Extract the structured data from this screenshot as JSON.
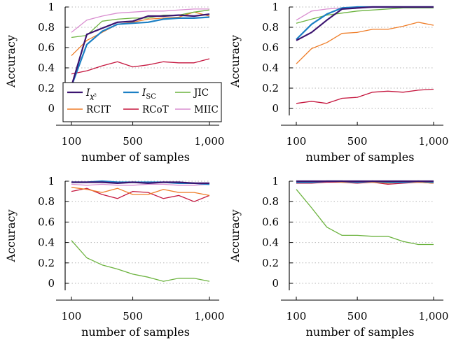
{
  "chart_data": [
    {
      "type": "line",
      "xlabel": "number of samples",
      "ylabel": "Accuracy",
      "ylim": [
        -0.05,
        1.0
      ],
      "xlim": [
        80,
        1000
      ],
      "xticks": [
        100,
        500,
        1000
      ],
      "xtick_labels": [
        "100",
        "500",
        "1,000"
      ],
      "yticks": [
        0,
        0.2,
        0.4,
        0.6,
        0.8,
        1
      ],
      "ytick_labels": [
        "0",
        "0.2",
        "0.4",
        "0.6",
        "0.8",
        "1"
      ],
      "grid": "horizontal dotted",
      "x": [
        100,
        200,
        300,
        400,
        500,
        600,
        700,
        800,
        900,
        1000
      ],
      "series": [
        {
          "key": "ichi",
          "name": "I𝜒²",
          "color": "#3b1470",
          "values": [
            0.22,
            0.73,
            0.79,
            0.85,
            0.86,
            0.91,
            0.91,
            0.92,
            0.91,
            0.93
          ]
        },
        {
          "key": "isc",
          "name": "ISC",
          "color": "#1b7fc4",
          "values": [
            0.22,
            0.63,
            0.76,
            0.83,
            0.84,
            0.85,
            0.88,
            0.89,
            0.89,
            0.9
          ]
        },
        {
          "key": "jic",
          "name": "JIC",
          "color": "#6cb33f",
          "values": [
            0.7,
            0.72,
            0.86,
            0.88,
            0.89,
            0.89,
            0.92,
            0.92,
            0.95,
            0.97
          ]
        },
        {
          "key": "rcit",
          "name": "RCIT",
          "color": "#ef7d28",
          "values": [
            0.52,
            0.67,
            0.75,
            0.83,
            0.85,
            0.88,
            0.89,
            0.9,
            0.95,
            0.91
          ]
        },
        {
          "key": "rcot",
          "name": "RCoT",
          "color": "#c5163e",
          "values": [
            0.34,
            0.37,
            0.42,
            0.46,
            0.41,
            0.43,
            0.46,
            0.45,
            0.45,
            0.49
          ]
        },
        {
          "key": "miic",
          "name": "MIIC",
          "color": "#d98ed0",
          "values": [
            0.75,
            0.87,
            0.91,
            0.94,
            0.95,
            0.96,
            0.96,
            0.97,
            0.98,
            0.98
          ]
        }
      ]
    },
    {
      "type": "line",
      "xlabel": "number of samples",
      "ylabel": "Accuracy",
      "ylim": [
        -0.05,
        1.0
      ],
      "xlim": [
        80,
        1000
      ],
      "xticks": [
        100,
        500,
        1000
      ],
      "xtick_labels": [
        "100",
        "500",
        "1,000"
      ],
      "yticks": [
        0,
        0.2,
        0.4,
        0.6,
        0.8,
        1
      ],
      "ytick_labels": [
        "0",
        "0.2",
        "0.4",
        "0.6",
        "0.8",
        "1"
      ],
      "grid": "horizontal dotted",
      "x": [
        100,
        200,
        300,
        400,
        500,
        600,
        700,
        800,
        900,
        1000
      ],
      "series": [
        {
          "key": "ichi",
          "color": "#3b1470",
          "values": [
            0.67,
            0.75,
            0.87,
            0.98,
            0.99,
            1.0,
            1.0,
            1.0,
            1.0,
            1.0
          ]
        },
        {
          "key": "isc",
          "color": "#1b7fc4",
          "values": [
            0.68,
            0.83,
            0.93,
            0.99,
            1.0,
            1.0,
            1.0,
            1.0,
            1.0,
            1.0
          ]
        },
        {
          "key": "jic",
          "color": "#6cb33f",
          "values": [
            0.84,
            0.88,
            0.92,
            0.94,
            0.96,
            0.97,
            0.98,
            0.99,
            0.99,
            0.99
          ]
        },
        {
          "key": "rcit",
          "color": "#ef7d28",
          "values": [
            0.44,
            0.59,
            0.65,
            0.74,
            0.75,
            0.78,
            0.78,
            0.81,
            0.85,
            0.82
          ]
        },
        {
          "key": "rcot",
          "color": "#c5163e",
          "values": [
            0.05,
            0.07,
            0.05,
            0.1,
            0.11,
            0.16,
            0.17,
            0.16,
            0.18,
            0.19
          ]
        },
        {
          "key": "miic",
          "color": "#d98ed0",
          "values": [
            0.87,
            0.96,
            0.98,
            0.99,
            1.0,
            1.0,
            1.0,
            1.0,
            1.0,
            1.0
          ]
        }
      ]
    },
    {
      "type": "line",
      "xlabel": "number of samples",
      "ylabel": "Accuracy",
      "ylim": [
        -0.05,
        1.0
      ],
      "xlim": [
        80,
        1000
      ],
      "xticks": [
        100,
        500,
        1000
      ],
      "xtick_labels": [
        "100",
        "500",
        "1,000"
      ],
      "yticks": [
        0,
        0.2,
        0.4,
        0.6,
        0.8,
        1
      ],
      "ytick_labels": [
        "0",
        "0.2",
        "0.4",
        "0.6",
        "0.8",
        "1"
      ],
      "grid": "horizontal dotted",
      "x": [
        100,
        200,
        300,
        400,
        500,
        600,
        700,
        800,
        900,
        1000
      ],
      "series": [
        {
          "key": "ichi",
          "color": "#3b1470",
          "values": [
            0.99,
            0.99,
            0.99,
            0.98,
            0.99,
            0.98,
            0.99,
            0.99,
            0.98,
            0.98
          ]
        },
        {
          "key": "isc",
          "color": "#1b7fc4",
          "values": [
            0.99,
            0.99,
            1.0,
            0.99,
            0.99,
            0.99,
            0.99,
            0.98,
            0.98,
            0.97
          ]
        },
        {
          "key": "jic",
          "color": "#6cb33f",
          "values": [
            0.42,
            0.25,
            0.18,
            0.14,
            0.09,
            0.06,
            0.02,
            0.05,
            0.05,
            0.02
          ]
        },
        {
          "key": "rcit",
          "color": "#ef7d28",
          "values": [
            0.94,
            0.92,
            0.89,
            0.93,
            0.87,
            0.87,
            0.92,
            0.89,
            0.89,
            0.86
          ]
        },
        {
          "key": "rcot",
          "color": "#c5163e",
          "values": [
            0.9,
            0.93,
            0.87,
            0.83,
            0.9,
            0.89,
            0.83,
            0.86,
            0.8,
            0.86
          ]
        },
        {
          "key": "miic",
          "color": "#d98ed0",
          "values": [
            0.97,
            0.96,
            0.97,
            0.96,
            0.96,
            0.97,
            0.97,
            0.96,
            0.96,
            0.97
          ]
        }
      ]
    },
    {
      "type": "line",
      "xlabel": "number of samples",
      "ylabel": "Accuracy",
      "ylim": [
        -0.05,
        1.0
      ],
      "xlim": [
        80,
        1000
      ],
      "xticks": [
        100,
        500,
        1000
      ],
      "xtick_labels": [
        "100",
        "500",
        "1,000"
      ],
      "yticks": [
        0,
        0.2,
        0.4,
        0.6,
        0.8,
        1
      ],
      "ytick_labels": [
        "0",
        "0.2",
        "0.4",
        "0.6",
        "0.8",
        "1"
      ],
      "grid": "horizontal dotted",
      "x": [
        100,
        200,
        300,
        400,
        500,
        600,
        700,
        800,
        900,
        1000
      ],
      "series": [
        {
          "key": "ichi",
          "color": "#3b1470",
          "values": [
            1.0,
            1.0,
            1.0,
            1.0,
            1.0,
            1.0,
            1.0,
            1.0,
            1.0,
            1.0
          ]
        },
        {
          "key": "isc",
          "color": "#1b7fc4",
          "values": [
            0.99,
            0.99,
            1.0,
            1.0,
            0.99,
            1.0,
            0.99,
            0.99,
            1.0,
            0.99
          ]
        },
        {
          "key": "jic",
          "color": "#6cb33f",
          "values": [
            0.92,
            0.74,
            0.55,
            0.47,
            0.47,
            0.46,
            0.46,
            0.41,
            0.38,
            0.38
          ]
        },
        {
          "key": "rcit",
          "color": "#ef7d28",
          "values": [
            0.99,
            0.99,
            1.0,
            0.99,
            0.99,
            0.99,
            0.98,
            0.99,
            0.99,
            0.98
          ]
        },
        {
          "key": "rcot",
          "color": "#c5163e",
          "values": [
            0.98,
            0.98,
            0.99,
            0.99,
            0.98,
            0.99,
            0.97,
            0.98,
            0.99,
            0.98
          ]
        },
        {
          "key": "miic",
          "color": "#d98ed0",
          "values": [
            1.0,
            1.0,
            1.0,
            1.0,
            1.0,
            1.0,
            1.0,
            1.0,
            1.0,
            1.0
          ]
        }
      ]
    }
  ],
  "legend": {
    "placement": "inside top-left panel, lower area",
    "entries": [
      {
        "key": "ichi",
        "label": "I",
        "label_sub": "𝜒²",
        "color": "#3b1470"
      },
      {
        "key": "isc",
        "label": "I",
        "label_sub": "SC",
        "color": "#1b7fc4"
      },
      {
        "key": "jic",
        "label": "JIC",
        "label_sub": "",
        "color": "#6cb33f"
      },
      {
        "key": "rcit",
        "label": "RCIT",
        "label_sub": "",
        "color": "#ef7d28"
      },
      {
        "key": "rcot",
        "label": "RCoT",
        "label_sub": "",
        "color": "#c5163e"
      },
      {
        "key": "miic",
        "label": "MIIC",
        "label_sub": "",
        "color": "#d98ed0"
      }
    ]
  }
}
